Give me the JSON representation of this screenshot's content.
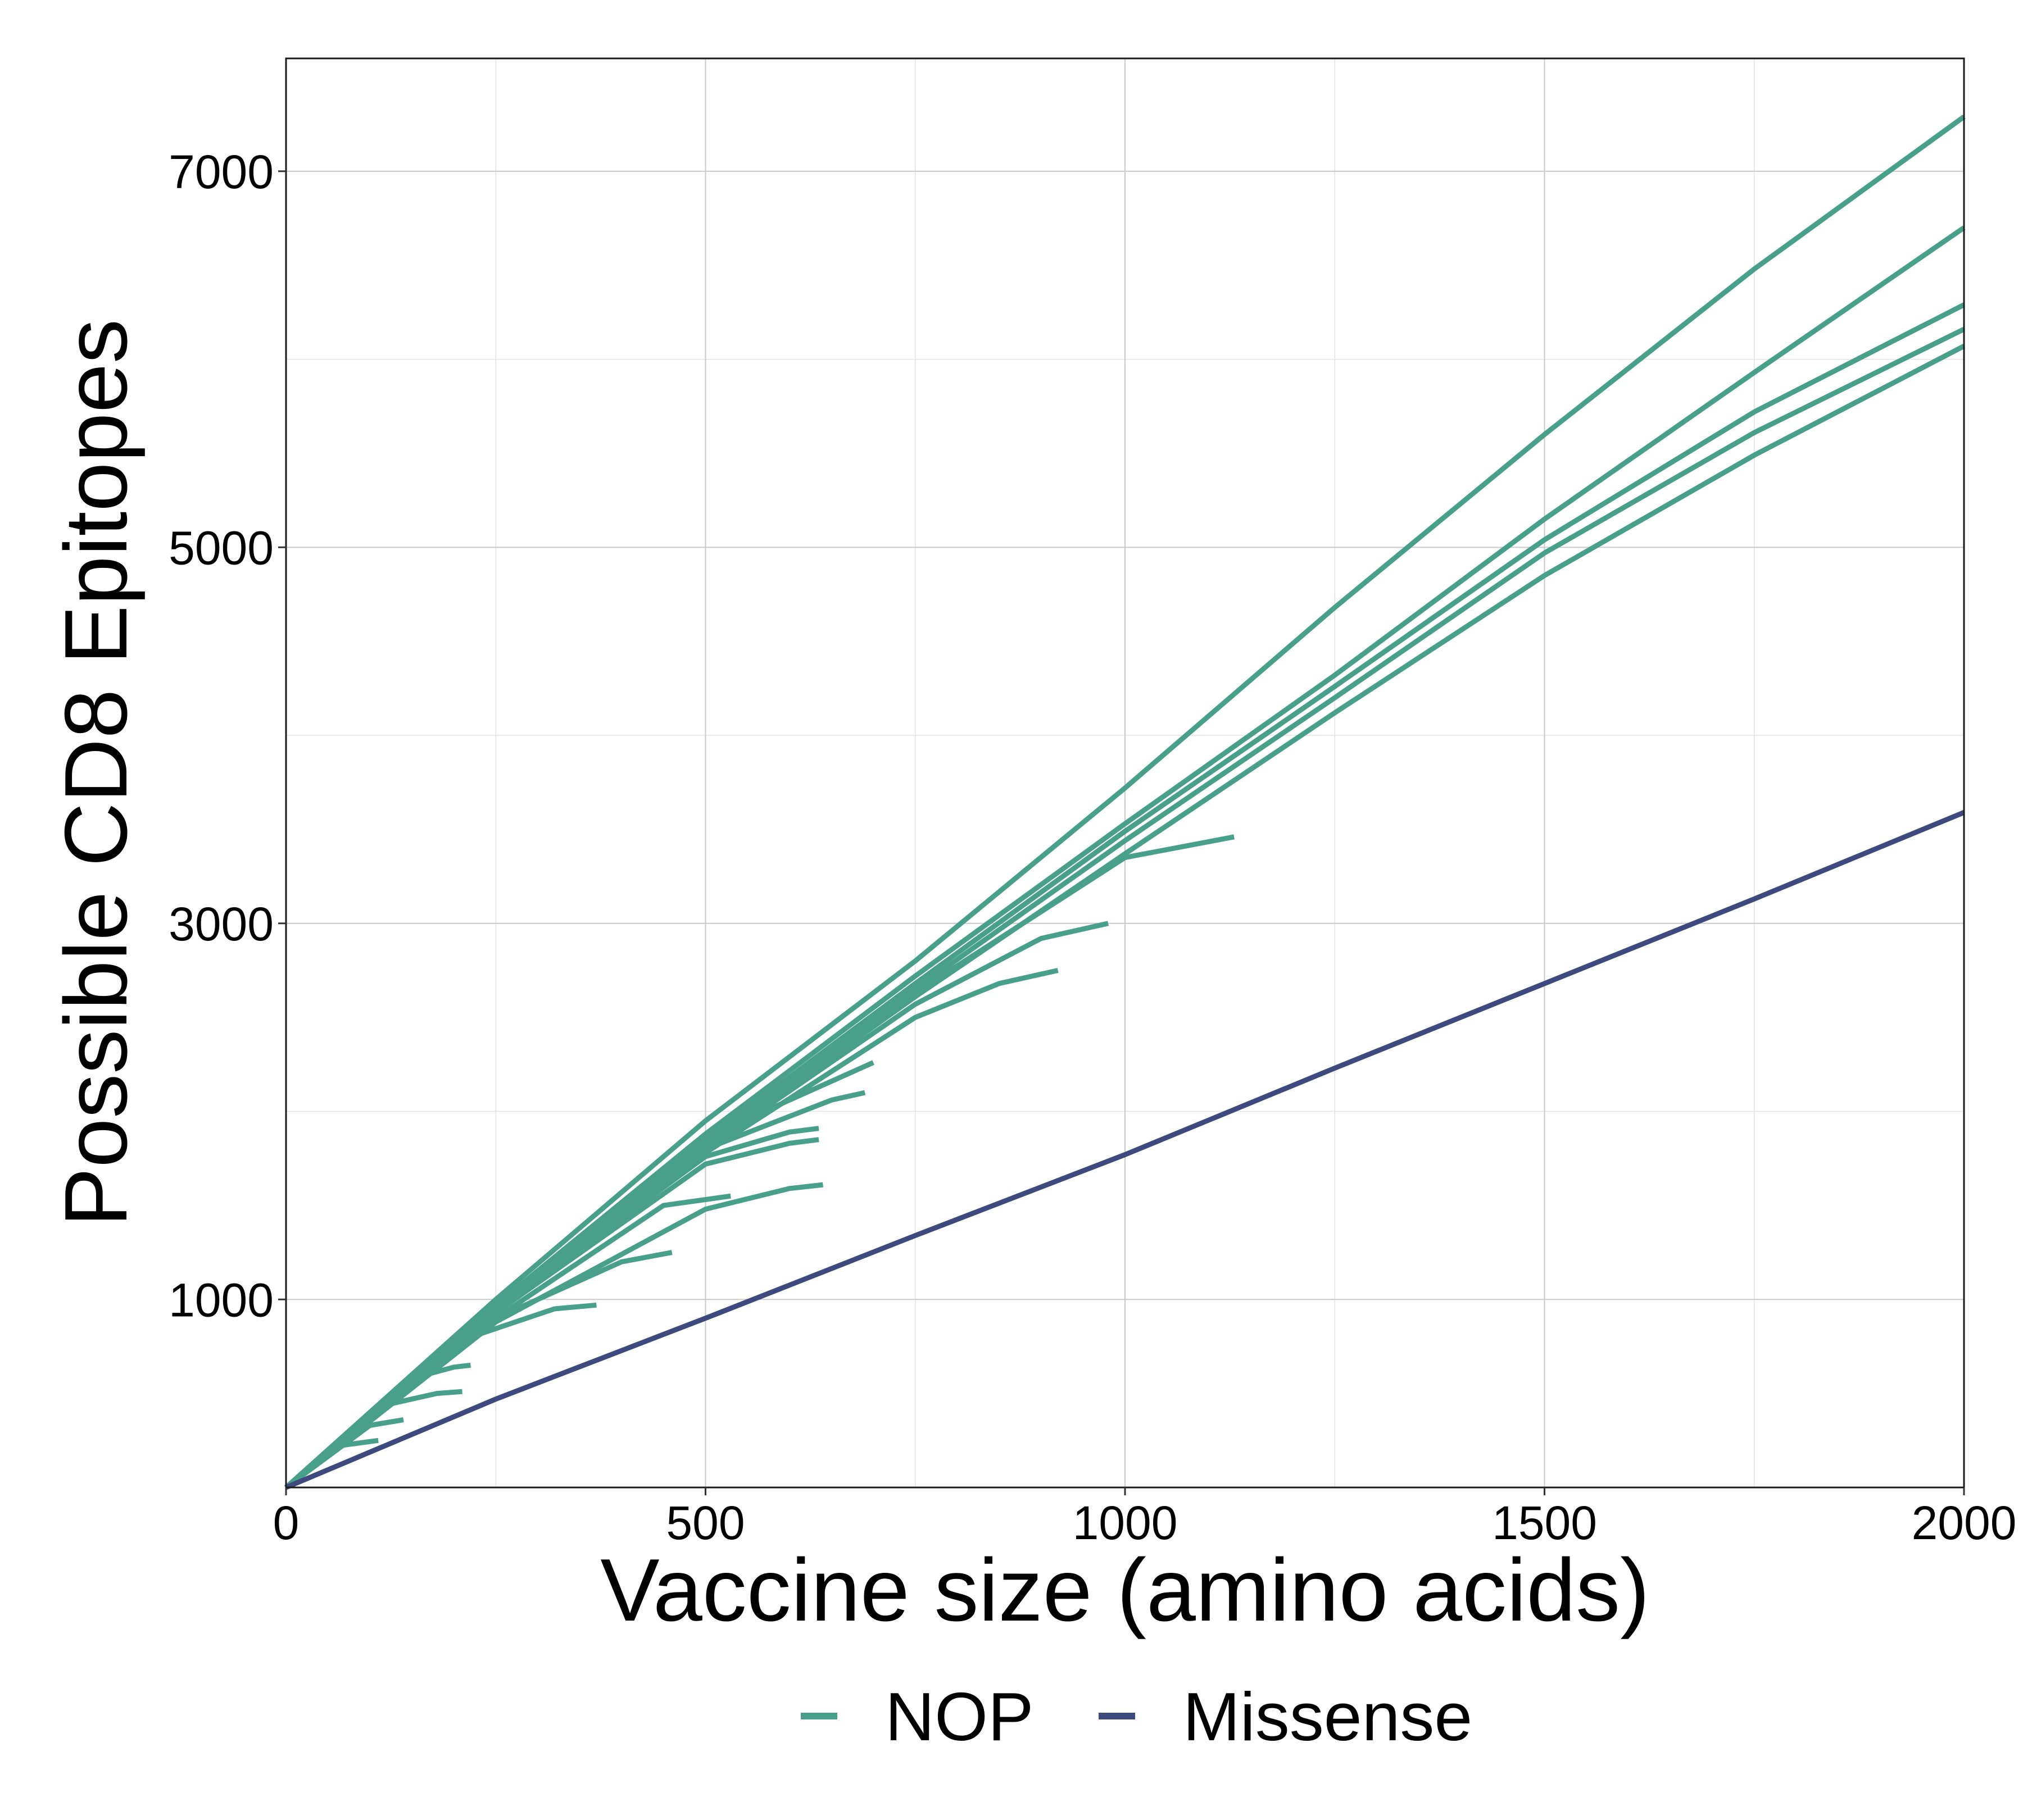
{
  "chart_data": {
    "type": "line",
    "title": "",
    "xlabel": "Vaccine size (amino acids)",
    "ylabel": "Possible CD8 Epitopes",
    "xlim": [
      0,
      2000
    ],
    "ylim": [
      0,
      7600
    ],
    "xticks": [
      0,
      500,
      1000,
      1500,
      2000
    ],
    "yticks": [
      1000,
      3000,
      5000,
      7000
    ],
    "grid": true,
    "legend": {
      "position": "bottom",
      "entries": [
        {
          "label": "NOP",
          "color": "#49A08A"
        },
        {
          "label": "Missense",
          "color": "#3E4A7E"
        }
      ]
    },
    "colors": {
      "NOP": "#49A08A",
      "Missense": "#3E4A7E"
    },
    "series": [
      {
        "group": "NOP",
        "x": [
          0,
          250,
          500,
          750,
          1000,
          1250,
          1500,
          1750,
          2000
        ],
        "y": [
          0,
          1000,
          1950,
          2800,
          3720,
          4680,
          5600,
          6480,
          7290
        ]
      },
      {
        "group": "NOP",
        "x": [
          0,
          250,
          500,
          750,
          1000,
          1250,
          1500,
          1750,
          2000
        ],
        "y": [
          0,
          970,
          1880,
          2720,
          3530,
          4320,
          5150,
          5930,
          6700
        ]
      },
      {
        "group": "NOP",
        "x": [
          0,
          250,
          500,
          750,
          1000,
          1250,
          1500,
          1750,
          2000
        ],
        "y": [
          0,
          960,
          1850,
          2680,
          3490,
          4260,
          5040,
          5720,
          6290
        ]
      },
      {
        "group": "NOP",
        "x": [
          0,
          250,
          500,
          750,
          1000,
          1250,
          1500,
          1750,
          2000
        ],
        "y": [
          0,
          950,
          1830,
          2650,
          3440,
          4200,
          4970,
          5610,
          6160
        ]
      },
      {
        "group": "NOP",
        "x": [
          0,
          250,
          500,
          750,
          1000,
          1250,
          1500,
          1750,
          2000
        ],
        "y": [
          0,
          940,
          1810,
          2610,
          3370,
          4120,
          4850,
          5490,
          6070
        ]
      },
      {
        "group": "NOP",
        "x": [
          0,
          250,
          500,
          750,
          1000,
          1130
        ],
        "y": [
          0,
          950,
          1820,
          2630,
          3350,
          3460
        ]
      },
      {
        "group": "NOP",
        "x": [
          0,
          250,
          500,
          750,
          900,
          980
        ],
        "y": [
          0,
          940,
          1800,
          2570,
          2920,
          3000
        ]
      },
      {
        "group": "NOP",
        "x": [
          0,
          250,
          500,
          750,
          850,
          920
        ],
        "y": [
          0,
          930,
          1780,
          2500,
          2680,
          2750
        ]
      },
      {
        "group": "NOP",
        "x": [
          0,
          250,
          500,
          700
        ],
        "y": [
          0,
          960,
          1860,
          2260
        ]
      },
      {
        "group": "NOP",
        "x": [
          0,
          250,
          500,
          650,
          690
        ],
        "y": [
          0,
          940,
          1800,
          2060,
          2100
        ]
      },
      {
        "group": "NOP",
        "x": [
          0,
          250,
          500,
          600,
          635
        ],
        "y": [
          0,
          940,
          1760,
          1890,
          1910
        ]
      },
      {
        "group": "NOP",
        "x": [
          0,
          250,
          500,
          600,
          635
        ],
        "y": [
          0,
          930,
          1720,
          1830,
          1850
        ]
      },
      {
        "group": "NOP",
        "x": [
          0,
          250,
          500,
          600,
          640
        ],
        "y": [
          0,
          880,
          1480,
          1590,
          1610
        ]
      },
      {
        "group": "NOP",
        "x": [
          0,
          250,
          450,
          530
        ],
        "y": [
          0,
          900,
          1500,
          1550
        ]
      },
      {
        "group": "NOP",
        "x": [
          0,
          250,
          400,
          460
        ],
        "y": [
          0,
          900,
          1200,
          1250
        ]
      },
      {
        "group": "NOP",
        "x": [
          0,
          200,
          320,
          370
        ],
        "y": [
          0,
          770,
          950,
          970
        ]
      },
      {
        "group": "NOP",
        "x": [
          0,
          150,
          200,
          220
        ],
        "y": [
          0,
          580,
          640,
          650
        ]
      },
      {
        "group": "NOP",
        "x": [
          0,
          120,
          180,
          210
        ],
        "y": [
          0,
          440,
          500,
          510
        ]
      },
      {
        "group": "NOP",
        "x": [
          0,
          100,
          140
        ],
        "y": [
          0,
          330,
          360
        ]
      },
      {
        "group": "NOP",
        "x": [
          0,
          60,
          110
        ],
        "y": [
          0,
          220,
          250
        ]
      },
      {
        "group": "Missense",
        "x": [
          0,
          250,
          500,
          750,
          1000,
          1250,
          1500,
          1750,
          2000
        ],
        "y": [
          0,
          470,
          900,
          1340,
          1770,
          2230,
          2680,
          3130,
          3590
        ]
      }
    ]
  },
  "legend": {
    "nop_label": "NOP",
    "missense_label": "Missense"
  },
  "axes": {
    "x_title": "Vaccine size (amino acids)",
    "y_title": "Possible CD8 Epitopes"
  }
}
